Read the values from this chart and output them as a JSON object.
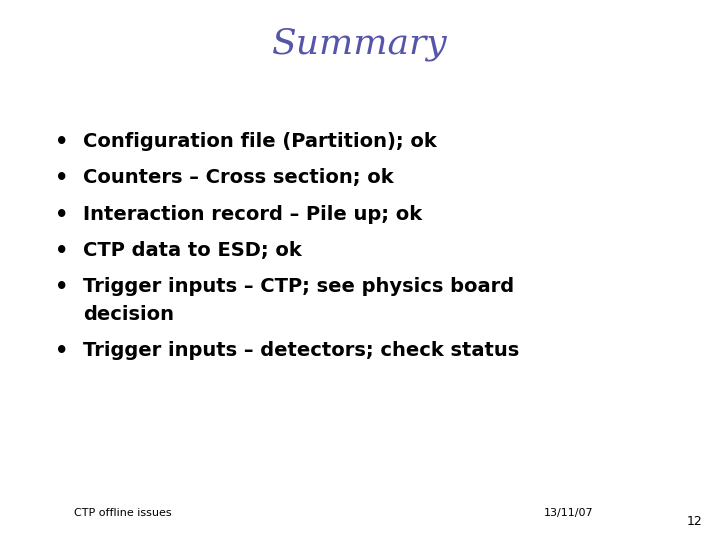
{
  "title": "Summary",
  "title_color": "#5555aa",
  "title_fontsize": 26,
  "title_font": "serif",
  "bullet_items": [
    [
      "Configuration file (Partition); ok"
    ],
    [
      "Counters – Cross section; ok"
    ],
    [
      "Interaction record – Pile up; ok"
    ],
    [
      "CTP data to ESD; ok"
    ],
    [
      "Trigger inputs – CTP; see physics board",
      "decision"
    ],
    [
      "Trigger inputs – detectors; check status"
    ]
  ],
  "bullet_fontsize": 14,
  "bullet_font": "DejaVu Sans",
  "bullet_color": "#000000",
  "bullet_char": "•",
  "footer_left": "CTP offline issues",
  "footer_right": "13/11/07",
  "footer_page": "12",
  "footer_fontsize": 8,
  "background_color": "#ffffff"
}
